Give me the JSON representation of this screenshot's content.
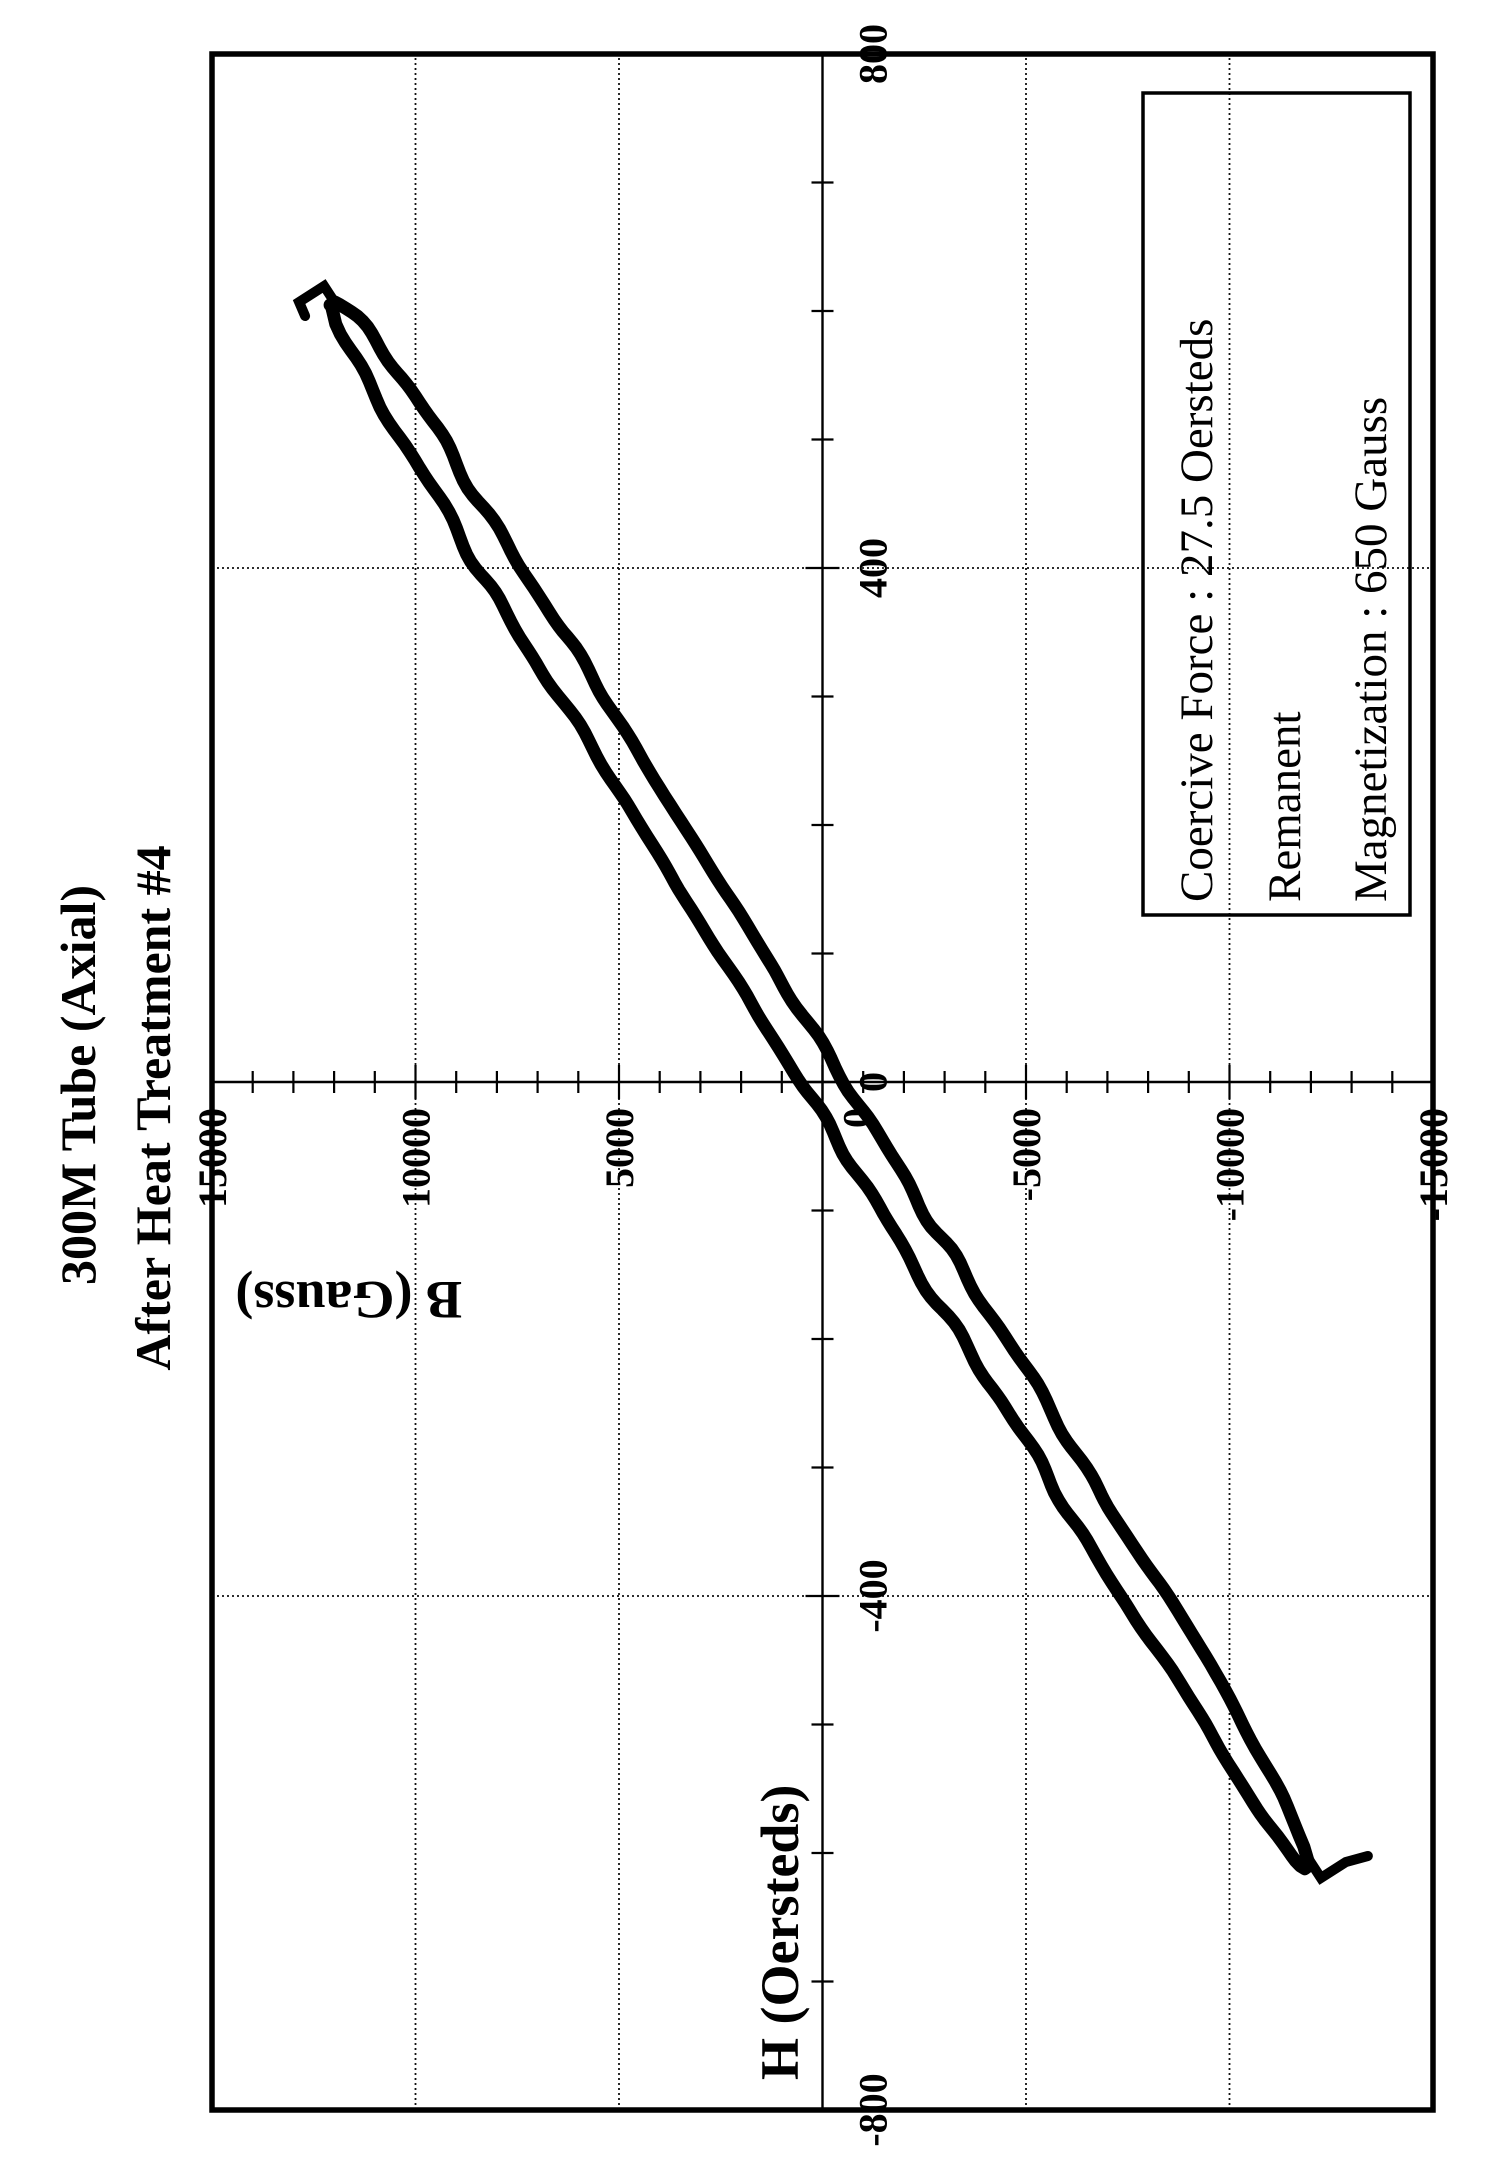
{
  "colors": {
    "ink": "#000000",
    "paper": "#ffffff"
  },
  "page": {
    "orientation": "landscape chart scanned and rotated 90 degrees counterclockwise"
  },
  "chart_data": {
    "type": "line",
    "subtype": "magnetic-hysteresis-loop",
    "title_lines": [
      "300M Tube (Axial)",
      "After Heat Treatment #4"
    ],
    "xlabel": "H (Oersteds)",
    "ylabel": "B (Gauss)",
    "xlim": [
      -800,
      800
    ],
    "ylim": [
      -15000,
      15000
    ],
    "x_tick_labels": [
      "-800",
      "-400",
      "0",
      "400",
      "800"
    ],
    "x_tick_values": [
      -800,
      -400,
      0,
      400,
      800
    ],
    "x_minor_step": 100,
    "y_tick_labels": [
      "15000",
      "10000",
      "5000",
      "0",
      "-5000",
      "-10000",
      "-15000"
    ],
    "y_tick_values": [
      15000,
      10000,
      5000,
      0,
      -5000,
      -10000,
      -15000
    ],
    "y_minor_step": 1000,
    "grid": true,
    "gridline_x_values": [
      -400,
      0,
      400
    ],
    "gridline_y_values": [
      -10000,
      -5000,
      5000,
      10000
    ],
    "axes_cross_at": [
      0,
      0
    ],
    "series": [
      {
        "name": "B-H loop",
        "h_max_oersteds": 607,
        "b_max_gauss": 12000,
        "coercive_force_oersteds": 27.5,
        "remanent_magnetization_gauss": 650,
        "branch_points_h": [
          -607,
          -400,
          -200,
          0,
          200,
          400,
          607
        ],
        "ascending_branch_b": [
          -12000,
          -8450,
          -4500,
          -650,
          3400,
          7350,
          12000
        ],
        "descending_branch_b": [
          -12000,
          -7350,
          -3400,
          650,
          4500,
          8450,
          12000
        ]
      }
    ],
    "annotation_box": {
      "lines": [
        "Coercive Force : 27.5 Oersteds",
        "Remanent",
        "Magnetization : 650 Gauss"
      ],
      "position": "lower-right"
    }
  }
}
